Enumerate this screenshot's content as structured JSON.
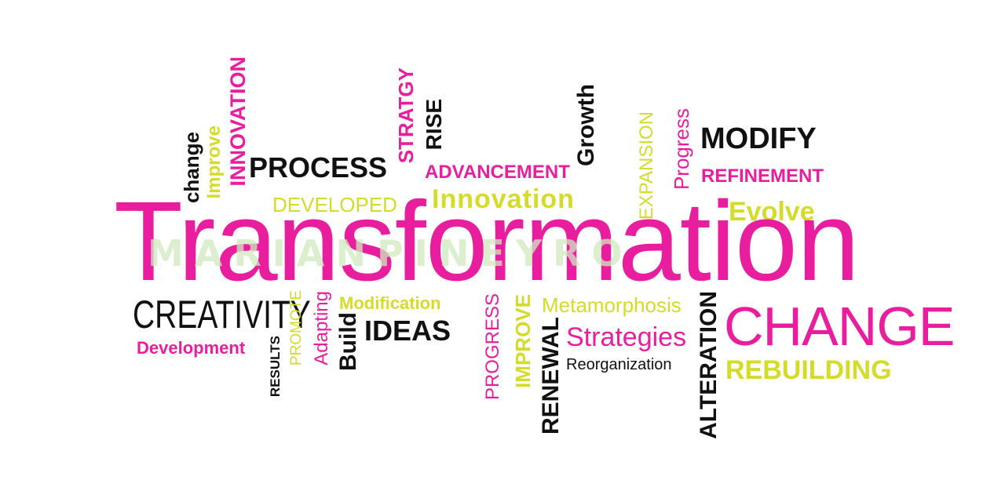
{
  "colors": {
    "pink": "#e91e9f",
    "lime": "#d4db28",
    "black": "#111111",
    "watermark": "#cfeac0"
  },
  "words": {
    "transformation": "Transformation",
    "watermark": "MARIANPINEYRO",
    "change_lower": "change",
    "improve_upper_i": "Improve",
    "innovation_upper": "INNOVATION",
    "process": "PROCESS",
    "stratgy": "STRATGY",
    "rise": "RISE",
    "advancement": "ADVANCEMENT",
    "growth": "Growth",
    "expansion": "EXPANSION",
    "progress_title": "Progress",
    "modify": "MODIFY",
    "refinement": "REFINEMENT",
    "developed": "DEVELOPED",
    "innovation_title": "Innovation",
    "evolve": "Evolve",
    "creativity": "CREATIVITY",
    "development": "Development",
    "results": "RESULTS",
    "promote": "PROMOTE",
    "adapting": "Adapting",
    "build": "Build",
    "modification": "Modification",
    "ideas": "IDEAS",
    "progress_upper": "PROGRESS",
    "improve_upper": "IMPROVE",
    "renewal": "RENEWAL",
    "metamorphosis": "Metamorphosis",
    "strategies": "Strategies",
    "reorganization": "Reorganization",
    "alteration": "ALTERATION",
    "change_upper": "CHANGE",
    "rebuilding": "REBUILDING"
  }
}
